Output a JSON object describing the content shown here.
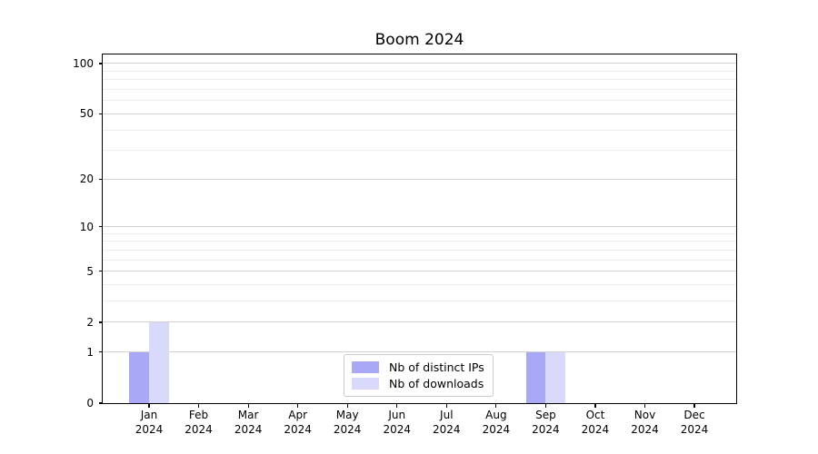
{
  "chart_data": {
    "type": "bar",
    "title": "Boom 2024",
    "categories": [
      "Jan 2024",
      "Feb 2024",
      "Mar 2024",
      "Apr 2024",
      "May 2024",
      "Jun 2024",
      "Jul 2024",
      "Aug 2024",
      "Sep 2024",
      "Oct 2024",
      "Nov 2024",
      "Dec 2024"
    ],
    "series": [
      {
        "name": "Nb of distinct IPs",
        "color": "#a8a8f6",
        "values": [
          1,
          0,
          0,
          0,
          0,
          0,
          0,
          0,
          1,
          0,
          0,
          0
        ]
      },
      {
        "name": "Nb of downloads",
        "color": "#d9d9fb",
        "values": [
          2,
          0,
          0,
          0,
          0,
          0,
          0,
          0,
          1,
          0,
          0,
          0
        ]
      }
    ],
    "xlabel": "",
    "ylabel": "",
    "yscale": "log(value+1)",
    "ylim": [
      0,
      112
    ],
    "yticks": [
      0,
      1,
      2,
      5,
      10,
      20,
      50,
      100
    ],
    "yticks_minor": [
      3,
      4,
      6,
      7,
      8,
      9,
      30,
      40,
      60,
      70,
      80,
      90
    ],
    "grid": "horizontal major + minor",
    "legend_position": "lower center"
  },
  "colors": {
    "background": "#ffffff",
    "axis": "#000000",
    "grid_major": "#d0d0d0",
    "grid_minor": "#ededed",
    "legend_border": "#cccccc"
  }
}
